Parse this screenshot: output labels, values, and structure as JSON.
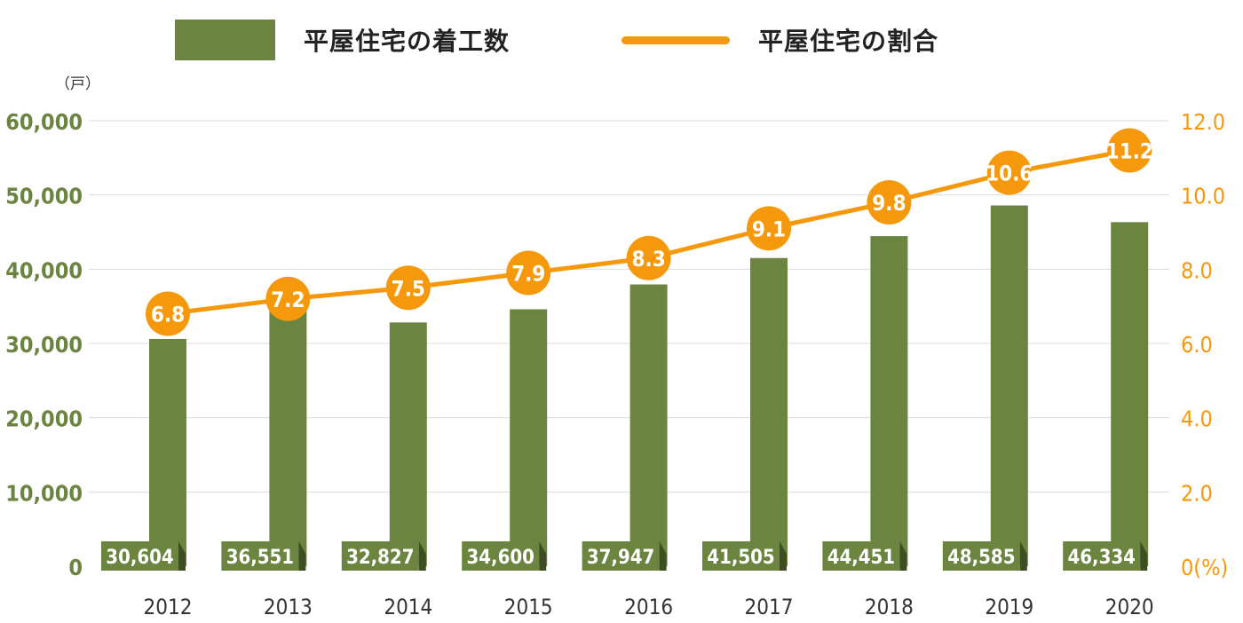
{
  "colors": {
    "bar": "#6b8440",
    "line": "#f6980b",
    "left_axis_text": "#6b8440",
    "right_axis_text": "#f6980b",
    "grid": "#dcdcdc",
    "year_text": "#333333"
  },
  "legend": {
    "bar_label": "平屋住宅の着工数",
    "line_label": "平屋住宅の割合"
  },
  "left_unit": "（戸）",
  "chart_data": {
    "type": "bar",
    "categories": [
      "2012",
      "2013",
      "2014",
      "2015",
      "2016",
      "2017",
      "2018",
      "2019",
      "2020"
    ],
    "series": [
      {
        "name": "平屋住宅の着工数",
        "type": "bar",
        "axis": "left",
        "values": [
          30604,
          36551,
          32827,
          34600,
          37947,
          41505,
          44451,
          48585,
          46334
        ],
        "labels": [
          "30,604",
          "36,551",
          "32,827",
          "34,600",
          "37,947",
          "41,505",
          "44,451",
          "48,585",
          "46,334"
        ]
      },
      {
        "name": "平屋住宅の割合",
        "type": "line",
        "axis": "right",
        "values": [
          6.8,
          7.2,
          7.5,
          7.9,
          8.3,
          9.1,
          9.8,
          10.6,
          11.2
        ],
        "labels": [
          "6.8",
          "7.2",
          "7.5",
          "7.9",
          "8.3",
          "9.1",
          "9.8",
          "10.6",
          "11.2"
        ]
      }
    ],
    "left_axis": {
      "ylim": [
        0,
        60000
      ],
      "ticks": [
        0,
        10000,
        20000,
        30000,
        40000,
        50000,
        60000
      ],
      "tick_labels": [
        "0",
        "10,000",
        "20,000",
        "30,000",
        "40,000",
        "50,000",
        "60,000"
      ]
    },
    "right_axis": {
      "ylim": [
        0,
        12
      ],
      "ticks": [
        0,
        2,
        4,
        6,
        8,
        10,
        12
      ],
      "tick_labels": [
        "0(%)",
        "2.0",
        "4.0",
        "6.0",
        "8.0",
        "10.0",
        "12.0"
      ]
    },
    "grid": true,
    "legend_position": "top"
  }
}
